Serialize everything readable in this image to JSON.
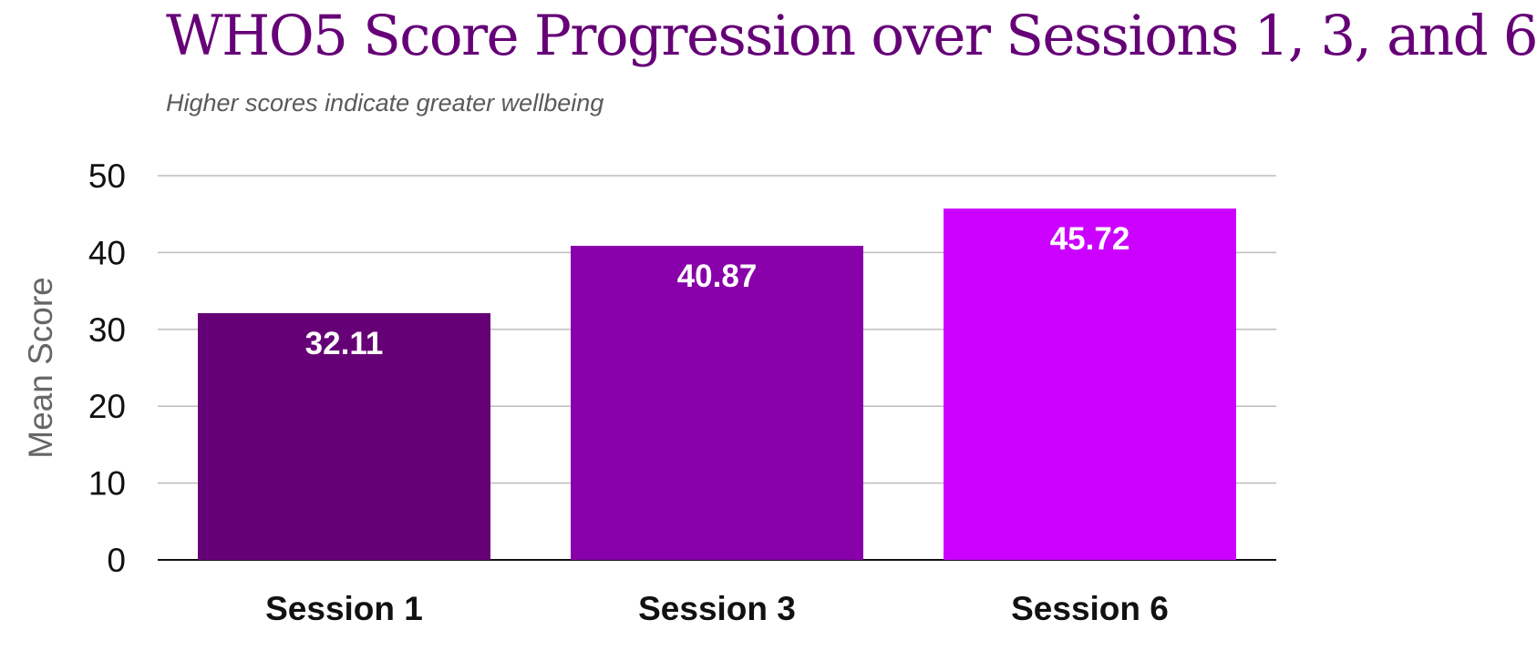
{
  "chart_data": {
    "type": "bar",
    "title": "WHO5 Score Progression over Sessions 1, 3, and 6",
    "subtitle": "Higher scores indicate greater wellbeing",
    "xlabel": "",
    "ylabel": "Mean Score",
    "ylim": [
      0,
      50
    ],
    "yticks": [
      0,
      10,
      20,
      30,
      40,
      50
    ],
    "grid": true,
    "categories": [
      "Session 1",
      "Session 3",
      "Session 6"
    ],
    "values": [
      32.11,
      40.87,
      45.72
    ],
    "data_labels": [
      "32.11",
      "40.87",
      "45.72"
    ],
    "bar_colors": [
      "#660077",
      "#8800aa",
      "#cc00ff"
    ],
    "title_color": "#660077"
  }
}
